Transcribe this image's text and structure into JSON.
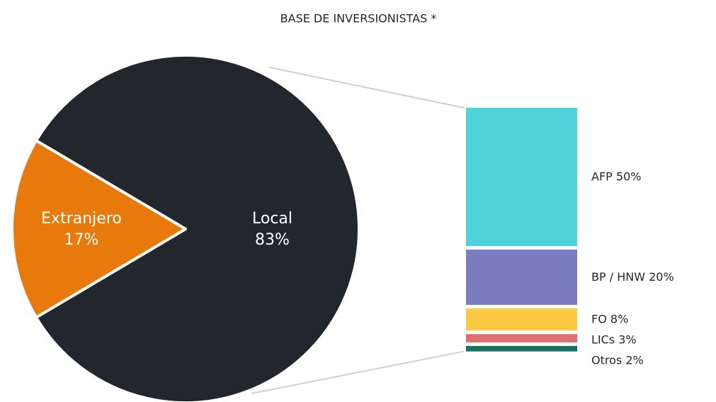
{
  "chart_data": [
    {
      "type": "pie",
      "title": "BASE DE INVERSIONISTAS *",
      "categories": [
        "Local",
        "Extranjero"
      ],
      "values": [
        83,
        17
      ],
      "value_labels": [
        "83%",
        "17%"
      ],
      "colors": [
        "#22272e",
        "#e87a0c"
      ]
    },
    {
      "type": "bar",
      "categories": [
        "AFP",
        "BP / HNW",
        "FO",
        "LICs",
        "Otros"
      ],
      "values": [
        50,
        20,
        8,
        3,
        2
      ],
      "value_labels": [
        "50%",
        "20%",
        "8%",
        "3%",
        "2%"
      ],
      "colors": [
        "#4fd3d9",
        "#7b7dbf",
        "#fdc844",
        "#e07070",
        "#1a6f5e"
      ]
    }
  ]
}
